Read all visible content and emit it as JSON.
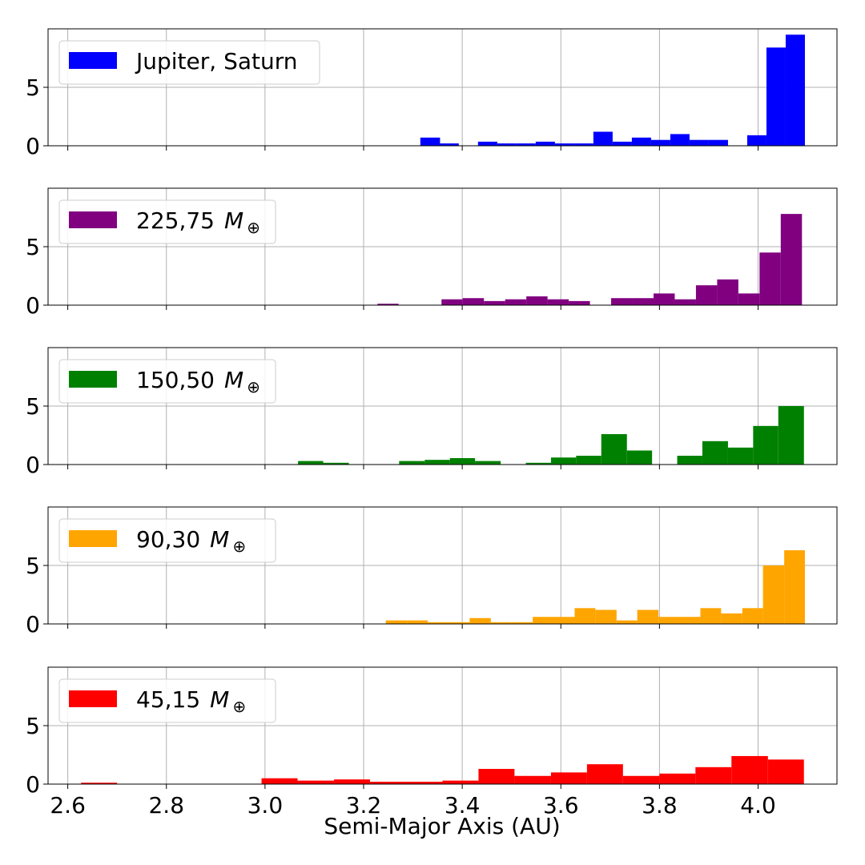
{
  "chart_data": {
    "type": "bar",
    "layout": "stacked-panels",
    "shared_x": true,
    "xlabel": "Semi-Major Axis (AU)",
    "xlim": [
      2.56,
      4.16
    ],
    "x_ticks": [
      "2.6",
      "2.8",
      "3.0",
      "3.2",
      "3.4",
      "3.6",
      "3.8",
      "4.0"
    ],
    "ylim": [
      0,
      10
    ],
    "y_ticks": [
      "0",
      "5"
    ],
    "grid": true,
    "legend_placement": "upper-left",
    "panels": [
      {
        "series_name": "Jupiter, Saturn",
        "legend_prefix": "Jupiter, Saturn",
        "legend_symbol": "",
        "legend_subscript": "",
        "color": "#0000ff",
        "bins": [
          {
            "x0": 3.315,
            "x1": 3.355,
            "value": 0.7
          },
          {
            "x0": 3.355,
            "x1": 3.393,
            "value": 0.2
          },
          {
            "x0": 3.432,
            "x1": 3.471,
            "value": 0.35
          },
          {
            "x0": 3.471,
            "x1": 3.51,
            "value": 0.2
          },
          {
            "x0": 3.51,
            "x1": 3.549,
            "value": 0.2
          },
          {
            "x0": 3.549,
            "x1": 3.588,
            "value": 0.35
          },
          {
            "x0": 3.588,
            "x1": 3.627,
            "value": 0.2
          },
          {
            "x0": 3.627,
            "x1": 3.666,
            "value": 0.2
          },
          {
            "x0": 3.666,
            "x1": 3.705,
            "value": 1.2
          },
          {
            "x0": 3.705,
            "x1": 3.744,
            "value": 0.35
          },
          {
            "x0": 3.744,
            "x1": 3.783,
            "value": 0.7
          },
          {
            "x0": 3.783,
            "x1": 3.822,
            "value": 0.5
          },
          {
            "x0": 3.822,
            "x1": 3.861,
            "value": 1.0
          },
          {
            "x0": 3.861,
            "x1": 3.9,
            "value": 0.5
          },
          {
            "x0": 3.9,
            "x1": 3.939,
            "value": 0.5
          },
          {
            "x0": 3.978,
            "x1": 4.017,
            "value": 0.9
          },
          {
            "x0": 4.017,
            "x1": 4.056,
            "value": 8.4
          },
          {
            "x0": 4.056,
            "x1": 4.095,
            "value": 9.5
          }
        ]
      },
      {
        "series_name": "225,75 M⊕",
        "legend_prefix": "225,75",
        "legend_symbol": "M",
        "legend_subscript": "⊕",
        "color": "#800080",
        "bins": [
          {
            "x0": 3.228,
            "x1": 3.271,
            "value": 0.12
          },
          {
            "x0": 3.358,
            "x1": 3.401,
            "value": 0.5
          },
          {
            "x0": 3.401,
            "x1": 3.444,
            "value": 0.6
          },
          {
            "x0": 3.444,
            "x1": 3.487,
            "value": 0.35
          },
          {
            "x0": 3.487,
            "x1": 3.53,
            "value": 0.5
          },
          {
            "x0": 3.53,
            "x1": 3.573,
            "value": 0.75
          },
          {
            "x0": 3.573,
            "x1": 3.616,
            "value": 0.5
          },
          {
            "x0": 3.616,
            "x1": 3.659,
            "value": 0.35
          },
          {
            "x0": 3.702,
            "x1": 3.745,
            "value": 0.6
          },
          {
            "x0": 3.745,
            "x1": 3.788,
            "value": 0.6
          },
          {
            "x0": 3.788,
            "x1": 3.831,
            "value": 1.0
          },
          {
            "x0": 3.831,
            "x1": 3.874,
            "value": 0.5
          },
          {
            "x0": 3.874,
            "x1": 3.917,
            "value": 1.7
          },
          {
            "x0": 3.917,
            "x1": 3.96,
            "value": 2.2
          },
          {
            "x0": 3.96,
            "x1": 4.003,
            "value": 1.0
          },
          {
            "x0": 4.003,
            "x1": 4.046,
            "value": 4.5
          },
          {
            "x0": 4.046,
            "x1": 4.089,
            "value": 7.8
          }
        ]
      },
      {
        "series_name": "150,50 M⊕",
        "legend_prefix": "150,50",
        "legend_symbol": "M",
        "legend_subscript": "⊕",
        "color": "#008000",
        "bins": [
          {
            "x0": 3.067,
            "x1": 3.118,
            "value": 0.3
          },
          {
            "x0": 3.118,
            "x1": 3.17,
            "value": 0.15
          },
          {
            "x0": 3.272,
            "x1": 3.324,
            "value": 0.3
          },
          {
            "x0": 3.324,
            "x1": 3.375,
            "value": 0.4
          },
          {
            "x0": 3.375,
            "x1": 3.426,
            "value": 0.55
          },
          {
            "x0": 3.426,
            "x1": 3.478,
            "value": 0.3
          },
          {
            "x0": 3.529,
            "x1": 3.58,
            "value": 0.15
          },
          {
            "x0": 3.58,
            "x1": 3.631,
            "value": 0.6
          },
          {
            "x0": 3.631,
            "x1": 3.682,
            "value": 0.75
          },
          {
            "x0": 3.682,
            "x1": 3.734,
            "value": 2.6
          },
          {
            "x0": 3.734,
            "x1": 3.785,
            "value": 1.2
          },
          {
            "x0": 3.836,
            "x1": 3.887,
            "value": 0.75
          },
          {
            "x0": 3.887,
            "x1": 3.939,
            "value": 2.0
          },
          {
            "x0": 3.939,
            "x1": 3.99,
            "value": 1.45
          },
          {
            "x0": 3.99,
            "x1": 4.041,
            "value": 3.3
          },
          {
            "x0": 4.041,
            "x1": 4.093,
            "value": 5.0
          }
        ]
      },
      {
        "series_name": "90,30 M⊕",
        "legend_prefix": "90,30",
        "legend_symbol": "M",
        "legend_subscript": "⊕",
        "color": "#ffa500",
        "bins": [
          {
            "x0": 3.245,
            "x1": 3.288,
            "value": 0.3
          },
          {
            "x0": 3.288,
            "x1": 3.33,
            "value": 0.3
          },
          {
            "x0": 3.33,
            "x1": 3.373,
            "value": 0.15
          },
          {
            "x0": 3.373,
            "x1": 3.415,
            "value": 0.15
          },
          {
            "x0": 3.415,
            "x1": 3.458,
            "value": 0.5
          },
          {
            "x0": 3.458,
            "x1": 3.5,
            "value": 0.15
          },
          {
            "x0": 3.5,
            "x1": 3.543,
            "value": 0.15
          },
          {
            "x0": 3.543,
            "x1": 3.585,
            "value": 0.6
          },
          {
            "x0": 3.585,
            "x1": 3.628,
            "value": 0.6
          },
          {
            "x0": 3.628,
            "x1": 3.67,
            "value": 1.35
          },
          {
            "x0": 3.67,
            "x1": 3.713,
            "value": 1.2
          },
          {
            "x0": 3.713,
            "x1": 3.755,
            "value": 0.3
          },
          {
            "x0": 3.755,
            "x1": 3.798,
            "value": 1.2
          },
          {
            "x0": 3.798,
            "x1": 3.84,
            "value": 0.6
          },
          {
            "x0": 3.84,
            "x1": 3.883,
            "value": 0.6
          },
          {
            "x0": 3.883,
            "x1": 3.925,
            "value": 1.35
          },
          {
            "x0": 3.925,
            "x1": 3.968,
            "value": 0.9
          },
          {
            "x0": 3.968,
            "x1": 4.01,
            "value": 1.35
          },
          {
            "x0": 4.01,
            "x1": 4.053,
            "value": 5.0
          },
          {
            "x0": 4.053,
            "x1": 4.095,
            "value": 6.3
          }
        ]
      },
      {
        "series_name": "45,15 M⊕",
        "legend_prefix": "45,15",
        "legend_symbol": "M",
        "legend_subscript": "⊕",
        "color": "#ff0000",
        "bins": [
          {
            "x0": 2.627,
            "x1": 2.7,
            "value": 0.12
          },
          {
            "x0": 2.993,
            "x1": 3.066,
            "value": 0.5
          },
          {
            "x0": 3.066,
            "x1": 3.14,
            "value": 0.3
          },
          {
            "x0": 3.14,
            "x1": 3.213,
            "value": 0.4
          },
          {
            "x0": 3.213,
            "x1": 3.286,
            "value": 0.2
          },
          {
            "x0": 3.286,
            "x1": 3.36,
            "value": 0.2
          },
          {
            "x0": 3.36,
            "x1": 3.433,
            "value": 0.3
          },
          {
            "x0": 3.433,
            "x1": 3.506,
            "value": 1.3
          },
          {
            "x0": 3.506,
            "x1": 3.58,
            "value": 0.7
          },
          {
            "x0": 3.58,
            "x1": 3.653,
            "value": 1.0
          },
          {
            "x0": 3.653,
            "x1": 3.726,
            "value": 1.7
          },
          {
            "x0": 3.726,
            "x1": 3.8,
            "value": 0.7
          },
          {
            "x0": 3.8,
            "x1": 3.873,
            "value": 0.9
          },
          {
            "x0": 3.873,
            "x1": 3.946,
            "value": 1.45
          },
          {
            "x0": 3.946,
            "x1": 4.02,
            "value": 2.4
          },
          {
            "x0": 4.02,
            "x1": 4.093,
            "value": 2.1
          }
        ]
      }
    ]
  }
}
